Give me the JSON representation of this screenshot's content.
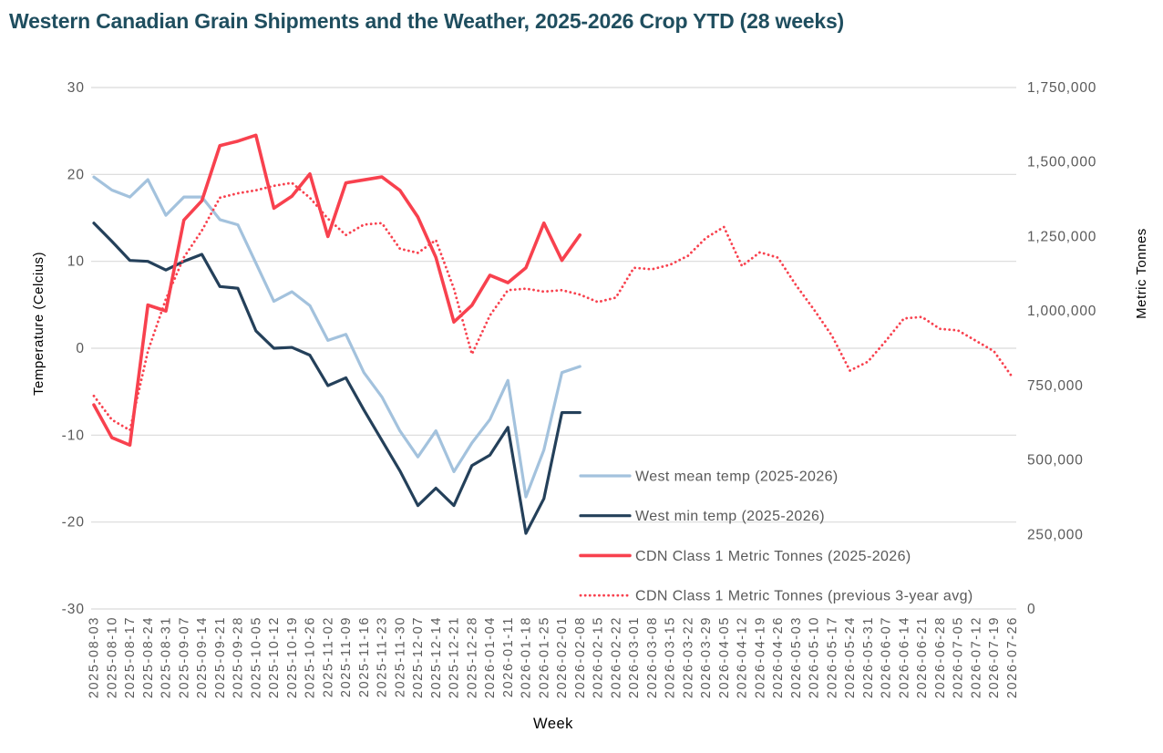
{
  "title": "Western Canadian Grain Shipments and the Weather, 2025-2026 Crop YTD (28 weeks)",
  "colors": {
    "title_text": "#1f4e5f",
    "axis_text": "#595959",
    "gridline": "#d9d9d9",
    "mean_temp_line": "#a3c2dd",
    "min_temp_line": "#24405a",
    "tonnes_line": "#f8414e",
    "background": "#ffffff"
  },
  "chart_data": {
    "type": "line",
    "title": "Western Canadian Grain Shipments and the Weather, 2025-2026 Crop YTD (28 weeks)",
    "xlabel": "Week",
    "ylabel_left": "Temperature (Celcius)",
    "ylabel_right": "Metric Tonnes",
    "grid": "horizontal",
    "legend_position": "inside-right-lower",
    "left_axis": {
      "min": -30,
      "max": 30,
      "ticks": [
        30,
        20,
        10,
        0,
        -10,
        -20,
        -30
      ]
    },
    "right_axis": {
      "min": 0,
      "max": 1750000,
      "tick_values": [
        1750000,
        1500000,
        1250000,
        1000000,
        750000,
        500000,
        250000,
        0
      ],
      "tick_labels": [
        "1,750,000",
        "1,500,000",
        "1,250,000",
        "1,000,000",
        "750,000",
        "500,000",
        "250,000",
        "0"
      ]
    },
    "x_categories": [
      "2025-08-03",
      "2025-08-10",
      "2025-08-17",
      "2025-08-24",
      "2025-08-31",
      "2025-09-07",
      "2025-09-14",
      "2025-09-21",
      "2025-09-28",
      "2025-10-05",
      "2025-10-12",
      "2025-10-19",
      "2025-10-26",
      "2025-11-02",
      "2025-11-09",
      "2025-11-16",
      "2025-11-23",
      "2025-11-30",
      "2025-12-07",
      "2025-12-14",
      "2025-12-21",
      "2025-12-28",
      "2026-01-04",
      "2026-01-11",
      "2026-01-18",
      "2026-01-25",
      "2026-02-01",
      "2026-02-08",
      "2026-02-15",
      "2026-02-22",
      "2026-03-01",
      "2026-03-08",
      "2026-03-15",
      "2026-03-22",
      "2026-03-29",
      "2026-04-05",
      "2026-04-12",
      "2026-04-19",
      "2026-04-26",
      "2026-05-03",
      "2026-05-10",
      "2026-05-17",
      "2026-05-24",
      "2026-05-31",
      "2026-06-07",
      "2026-06-14",
      "2026-06-21",
      "2026-06-28",
      "2026-07-05",
      "2026-07-12",
      "2026-07-19",
      "2026-07-26"
    ],
    "series": [
      {
        "name": "West mean temp (2025-2026)",
        "slug": "west-mean-temp",
        "axis": "left",
        "style": "solid",
        "color": "#a3c2dd",
        "width": 3.2,
        "values": [
          19.7,
          18.2,
          17.4,
          19.4,
          15.3,
          17.4,
          17.4,
          14.8,
          14.2,
          9.8,
          5.4,
          6.5,
          4.9,
          0.9,
          1.6,
          -2.8,
          -5.6,
          -9.5,
          -12.5,
          -9.5,
          -14.2,
          -10.9,
          -8.2,
          -3.7,
          -17.1,
          -11.7,
          -2.8,
          -2.1
        ]
      },
      {
        "name": "West min temp (2025-2026)",
        "slug": "west-min-temp",
        "axis": "left",
        "style": "solid",
        "color": "#24405a",
        "width": 3.2,
        "values": [
          14.4,
          12.3,
          10.1,
          10.0,
          9.0,
          10.0,
          10.8,
          7.1,
          6.9,
          2.0,
          0.0,
          0.1,
          -0.8,
          -4.3,
          -3.4,
          -7.1,
          -10.6,
          -14.1,
          -18.1,
          -16.1,
          -18.1,
          -13.5,
          -12.3,
          -9.1,
          -21.3,
          -17.3,
          -7.4,
          -7.4
        ]
      },
      {
        "name": "CDN Class 1 Metric Tonnes (previous 3-year avg)",
        "slug": "cdn-class1-prev-3yr-avg",
        "axis": "right",
        "style": "dotted",
        "color": "#f8414e",
        "width": 2.8,
        "values": [
          715000,
          635000,
          600000,
          865000,
          1040000,
          1180000,
          1270000,
          1380000,
          1395000,
          1405000,
          1420000,
          1430000,
          1380000,
          1310000,
          1255000,
          1290000,
          1295000,
          1209000,
          1195000,
          1238000,
          1075000,
          855000,
          985000,
          1070000,
          1075000,
          1065000,
          1070000,
          1055000,
          1030000,
          1045000,
          1145000,
          1140000,
          1155000,
          1185000,
          1245000,
          1282000,
          1151000,
          1197000,
          1179000,
          1087000,
          1005000,
          917000,
          800000,
          830000,
          900000,
          975000,
          980000,
          940000,
          935000,
          900000,
          865000,
          780000
        ]
      },
      {
        "name": "CDN Class 1 Metric Tonnes (2025-2026)",
        "slug": "cdn-class1-2025-2026",
        "axis": "right",
        "style": "solid",
        "color": "#f8414e",
        "width": 3.6,
        "values": [
          685000,
          575000,
          550000,
          1020000,
          1000000,
          1305000,
          1370000,
          1555000,
          1570000,
          1590000,
          1345000,
          1385000,
          1460000,
          1250000,
          1430000,
          1440000,
          1450000,
          1405000,
          1315000,
          1180000,
          963000,
          1019000,
          1120000,
          1095000,
          1145000,
          1295000,
          1170000,
          1255000
        ]
      }
    ],
    "legend_order": [
      "west-mean-temp",
      "west-min-temp",
      "cdn-class1-2025-2026",
      "cdn-class1-prev-3yr-avg"
    ]
  }
}
